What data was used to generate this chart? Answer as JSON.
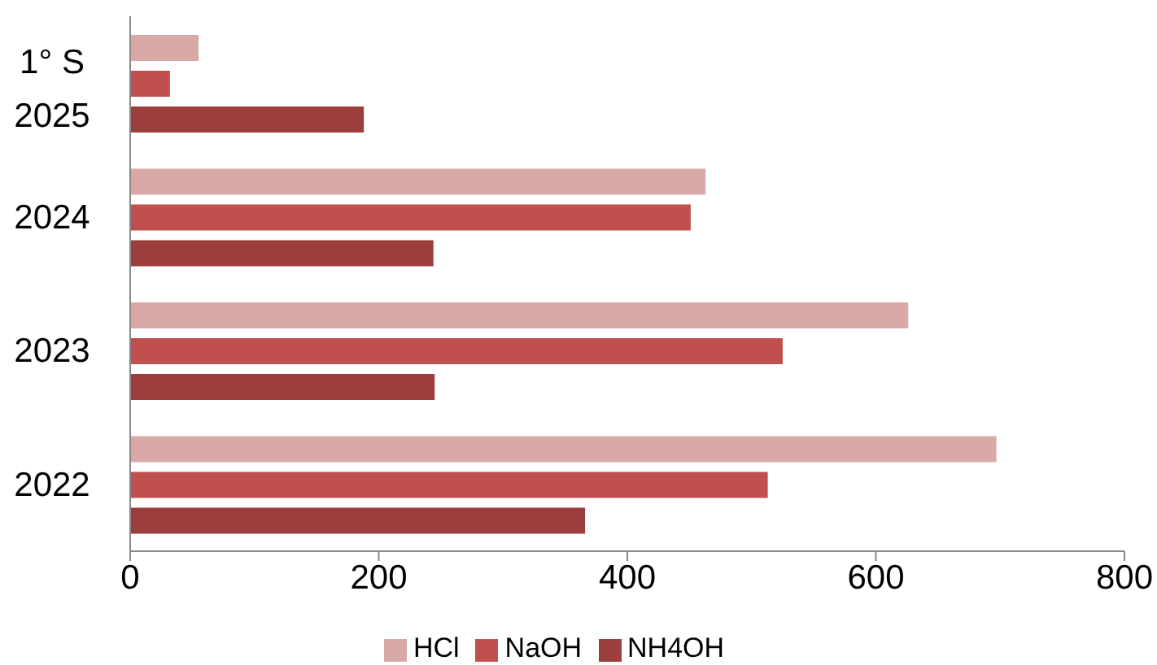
{
  "chart_data": {
    "type": "bar",
    "orientation": "horizontal",
    "categories": [
      "1° S\n2025",
      "2024",
      "2023",
      "2022"
    ],
    "series": [
      {
        "name": "HCl",
        "color": "#d9a9a8",
        "values": [
          55,
          463,
          626,
          697
        ]
      },
      {
        "name": "NaOH",
        "color": "#c0504d",
        "values": [
          32,
          451,
          525,
          513
        ]
      },
      {
        "name": "NH4OH",
        "color": "#9c3e3c",
        "values": [
          188,
          244,
          245,
          366
        ]
      }
    ],
    "xlim": [
      0,
      800
    ],
    "xticks": [
      0,
      200,
      400,
      600,
      800
    ],
    "grid": false,
    "legend": "bottom"
  }
}
